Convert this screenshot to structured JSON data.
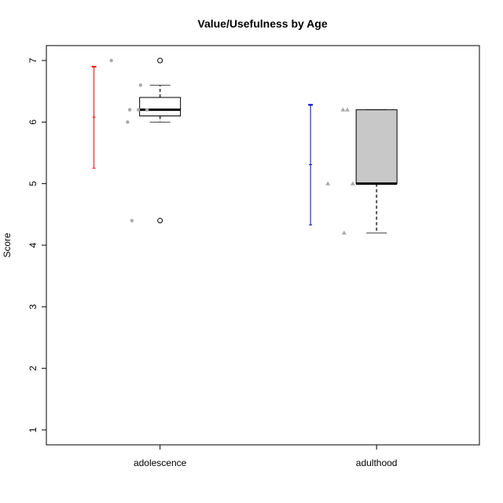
{
  "chart_data": {
    "type": "boxplot",
    "title": "Value/Usefulness by Age",
    "xlabel": "",
    "ylabel": "Score",
    "ylim": [
      0.75,
      7.1
    ],
    "yticks": [
      1,
      2,
      3,
      4,
      5,
      6,
      7
    ],
    "categories": [
      "adolescence",
      "adulthood"
    ],
    "boxes": [
      {
        "category": "adolescence",
        "whisker_low": 6.0,
        "q1": 6.1,
        "median": 6.2,
        "q3": 6.4,
        "whisker_high": 6.6,
        "outliers": [
          7.0,
          4.4
        ],
        "fill": "#ffffff"
      },
      {
        "category": "adulthood",
        "whisker_low": 4.2,
        "q1": 5.0,
        "median": 5.0,
        "q3": 6.2,
        "whisker_high": 6.2,
        "outliers": [],
        "fill": "#c8c8c8"
      }
    ],
    "error_bars": [
      {
        "category": "adolescence",
        "mean": 6.08,
        "low": 5.25,
        "high": 6.9,
        "color": "#ff0000"
      },
      {
        "category": "adulthood",
        "mean": 5.31,
        "low": 4.33,
        "high": 6.28,
        "color": "#0000cc"
      }
    ],
    "jitter_points": [
      {
        "category": "adolescence",
        "shape": "circle",
        "color": "#aaaaaa",
        "points": [
          {
            "offset": -0.45,
            "y": 7.0
          },
          {
            "offset": -0.3,
            "y": 6.0
          },
          {
            "offset": -0.28,
            "y": 6.2
          },
          {
            "offset": -0.26,
            "y": 4.4
          },
          {
            "offset": -0.2,
            "y": 6.2
          },
          {
            "offset": -0.18,
            "y": 6.6
          },
          {
            "offset": -0.12,
            "y": 6.2
          }
        ]
      },
      {
        "category": "adulthood",
        "shape": "triangle",
        "color": "#aaaaaa",
        "points": [
          {
            "offset": -0.45,
            "y": 5.0
          },
          {
            "offset": -0.31,
            "y": 6.2
          },
          {
            "offset": -0.3,
            "y": 4.2
          },
          {
            "offset": -0.27,
            "y": 6.2
          },
          {
            "offset": -0.22,
            "y": 5.0
          }
        ]
      }
    ],
    "grid": false,
    "legend": "none"
  }
}
